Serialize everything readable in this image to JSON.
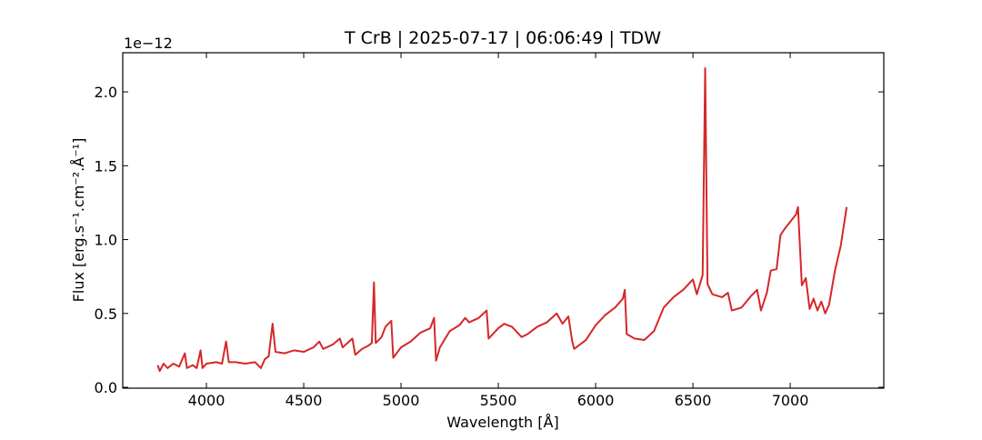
{
  "chart_data": {
    "type": "line",
    "title": "T CrB | 2025-07-17 | 06:06:49 | TDW",
    "x_label": "Wavelength [Å]",
    "y_label": "Flux [erg.s⁻¹.cm⁻².Å⁻¹]",
    "offset_text": "1e−12",
    "xlim": [
      3570,
      7481
    ],
    "ylim": [
      -0.006,
      2.265
    ],
    "xticks": [
      4000,
      4500,
      5000,
      5500,
      6000,
      6500,
      7000
    ],
    "yticks": [
      {
        "value": 0,
        "label": "0.0"
      },
      0.5,
      {
        "value": 1,
        "label": "1.0"
      },
      1.5,
      {
        "value": 2,
        "label": "2.0"
      }
    ],
    "x": [
      3750,
      3760,
      3780,
      3800,
      3830,
      3860,
      3889,
      3900,
      3930,
      3950,
      3970,
      3980,
      4000,
      4050,
      4080,
      4101,
      4115,
      4150,
      4200,
      4250,
      4280,
      4300,
      4320,
      4340,
      4355,
      4400,
      4450,
      4500,
      4550,
      4580,
      4600,
      4650,
      4686,
      4700,
      4750,
      4765,
      4800,
      4830,
      4850,
      4861,
      4870,
      4900,
      4920,
      4950,
      4960,
      5000,
      5050,
      5100,
      5150,
      5170,
      5180,
      5200,
      5250,
      5300,
      5330,
      5350,
      5400,
      5440,
      5450,
      5500,
      5530,
      5570,
      5620,
      5650,
      5700,
      5750,
      5800,
      5830,
      5860,
      5880,
      5890,
      5950,
      6000,
      6050,
      6100,
      6140,
      6150,
      6160,
      6200,
      6250,
      6300,
      6350,
      6400,
      6450,
      6500,
      6520,
      6550,
      6563,
      6575,
      6600,
      6650,
      6680,
      6700,
      6750,
      6800,
      6830,
      6850,
      6880,
      6900,
      6930,
      6950,
      6970,
      7000,
      7030,
      7040,
      7060,
      7080,
      7100,
      7120,
      7140,
      7160,
      7180,
      7200,
      7230,
      7260,
      7275,
      7290
    ],
    "series": [
      {
        "color": "#d62728",
        "values": [
          0.15,
          0.11,
          0.16,
          0.13,
          0.16,
          0.14,
          0.23,
          0.13,
          0.15,
          0.13,
          0.25,
          0.13,
          0.16,
          0.17,
          0.16,
          0.31,
          0.17,
          0.17,
          0.16,
          0.17,
          0.13,
          0.19,
          0.21,
          0.43,
          0.24,
          0.23,
          0.25,
          0.24,
          0.27,
          0.31,
          0.26,
          0.29,
          0.33,
          0.27,
          0.33,
          0.22,
          0.26,
          0.28,
          0.3,
          0.71,
          0.3,
          0.34,
          0.41,
          0.45,
          0.2,
          0.27,
          0.31,
          0.37,
          0.4,
          0.47,
          0.18,
          0.27,
          0.38,
          0.42,
          0.47,
          0.44,
          0.47,
          0.52,
          0.33,
          0.4,
          0.43,
          0.41,
          0.34,
          0.36,
          0.41,
          0.44,
          0.5,
          0.43,
          0.48,
          0.31,
          0.26,
          0.32,
          0.42,
          0.49,
          0.54,
          0.6,
          0.66,
          0.36,
          0.33,
          0.32,
          0.38,
          0.54,
          0.61,
          0.66,
          0.73,
          0.63,
          0.76,
          2.16,
          0.7,
          0.63,
          0.61,
          0.64,
          0.52,
          0.54,
          0.62,
          0.66,
          0.52,
          0.64,
          0.79,
          0.8,
          1.03,
          1.07,
          1.12,
          1.17,
          1.22,
          0.69,
          0.74,
          0.53,
          0.6,
          0.52,
          0.58,
          0.5,
          0.56,
          0.79,
          0.96,
          1.09,
          1.22
        ]
      }
    ]
  }
}
